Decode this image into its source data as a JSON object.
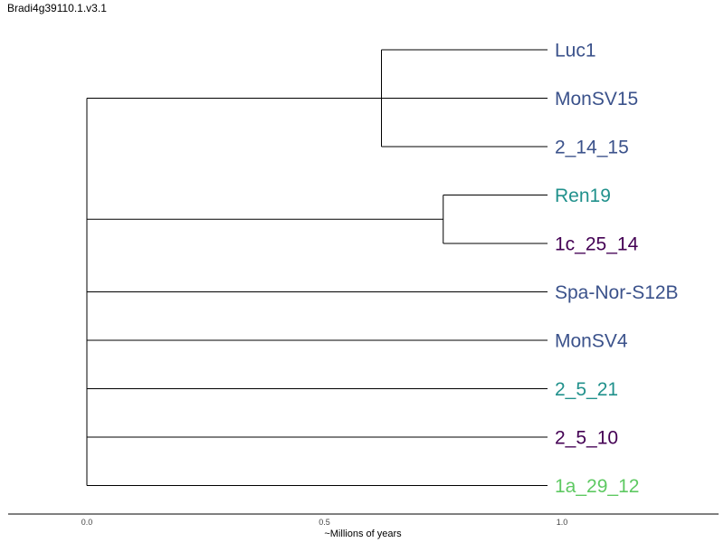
{
  "title": "Bradi4g39110.1.v3.1",
  "axis": {
    "label": "~Millions of years",
    "ticks": [
      "0.0",
      "0.5",
      "1.0"
    ],
    "tick_values": [
      0.0,
      0.5,
      1.0
    ]
  },
  "colors": {
    "blue": "#3b528b",
    "teal": "#21918c",
    "purple": "#440154",
    "green": "#5ec962",
    "line": "#000000"
  },
  "leaves": [
    {
      "name": "Luc1",
      "color": "#3b528b"
    },
    {
      "name": "MonSV15",
      "color": "#3b528b"
    },
    {
      "name": "2_14_15",
      "color": "#3b528b"
    },
    {
      "name": "Ren19",
      "color": "#21918c"
    },
    {
      "name": "1c_25_14",
      "color": "#440154"
    },
    {
      "name": "Spa-Nor-S12B",
      "color": "#3b528b"
    },
    {
      "name": "MonSV4",
      "color": "#3b528b"
    },
    {
      "name": "2_5_21",
      "color": "#21918c"
    },
    {
      "name": "2_5_10",
      "color": "#440154"
    },
    {
      "name": "1a_29_12",
      "color": "#5ec962"
    }
  ],
  "tree": {
    "root_time": 0.0,
    "clades": [
      {
        "time": 0.62,
        "leaves": [
          0,
          2
        ],
        "mid_leaf": 1
      },
      {
        "time": 0.75,
        "leaves": [
          3,
          4
        ]
      }
    ],
    "root_children": [
      {
        "type": "leaf-attach-clade",
        "clade": 0
      },
      {
        "type": "clade",
        "clade": 1
      },
      {
        "type": "leaf",
        "leaf": 5
      },
      {
        "type": "leaf",
        "leaf": 6
      },
      {
        "type": "leaf",
        "leaf": 7
      },
      {
        "type": "leaf",
        "leaf": 8
      },
      {
        "type": "leaf",
        "leaf": 9
      }
    ]
  }
}
